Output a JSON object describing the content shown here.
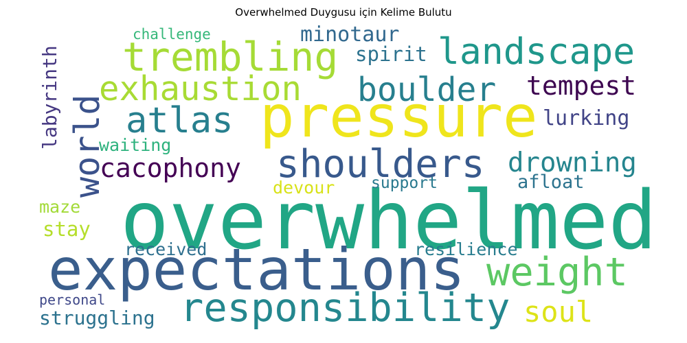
{
  "title": "Overwhelmed Duygusu için Kelime Bulutu",
  "words": [
    {
      "text": "overwhelmed",
      "color": "#21a685"
    },
    {
      "text": "expectations",
      "color": "#3a5e8c"
    },
    {
      "text": "pressure",
      "color": "#efe51c"
    },
    {
      "text": "responsibility",
      "color": "#24878e"
    },
    {
      "text": "weight",
      "color": "#5cc863"
    },
    {
      "text": "shoulders",
      "color": "#38598c"
    },
    {
      "text": "trembling",
      "color": "#a5db36"
    },
    {
      "text": "landscape",
      "color": "#1f978b"
    },
    {
      "text": "exhaustion",
      "color": "#a8db34"
    },
    {
      "text": "boulder",
      "color": "#277f8e"
    },
    {
      "text": "atlas",
      "color": "#277f8e"
    },
    {
      "text": "world",
      "color": "#3b528b"
    },
    {
      "text": "cacophony",
      "color": "#440154"
    },
    {
      "text": "drowning",
      "color": "#25858e"
    },
    {
      "text": "tempest",
      "color": "#3e0751"
    },
    {
      "text": "minotaur",
      "color": "#31688e"
    },
    {
      "text": "spirit",
      "color": "#2c728e"
    },
    {
      "text": "lurking",
      "color": "#414487"
    },
    {
      "text": "waiting",
      "color": "#2db27d"
    },
    {
      "text": "afloat",
      "color": "#2c738e"
    },
    {
      "text": "devour",
      "color": "#d8e219"
    },
    {
      "text": "support",
      "color": "#29798e"
    },
    {
      "text": "challenge",
      "color": "#35b779"
    },
    {
      "text": "labyrinth",
      "color": "#453781"
    },
    {
      "text": "maze",
      "color": "#a2da37"
    },
    {
      "text": "stay",
      "color": "#b5de2b"
    },
    {
      "text": "received",
      "color": "#2e6f8e"
    },
    {
      "text": "resilience",
      "color": "#287c8e"
    },
    {
      "text": "personal",
      "color": "#3f4889"
    },
    {
      "text": "struggling",
      "color": "#2c728e"
    },
    {
      "text": "soul",
      "color": "#dde318"
    }
  ]
}
